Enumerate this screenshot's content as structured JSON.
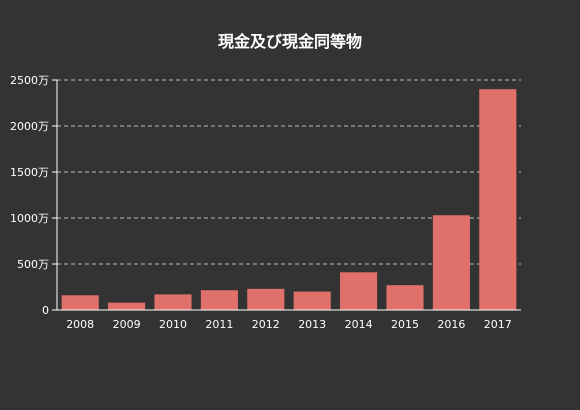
{
  "chart_data": {
    "type": "bar",
    "title": "現金及び現金同等物",
    "categories": [
      "2008",
      "2009",
      "2010",
      "2011",
      "2012",
      "2013",
      "2014",
      "2015",
      "2016",
      "2017"
    ],
    "series": [
      {
        "values": [
          160,
          80,
          170,
          215,
          230,
          200,
          410,
          270,
          1030,
          2400
        ],
        "color": "#e0706a"
      }
    ],
    "y_ticks": [
      0,
      500,
      1000,
      1500,
      2000,
      2500
    ],
    "y_tick_labels": [
      "0",
      "500万",
      "1000万",
      "1500万",
      "2000万",
      "2500万"
    ],
    "ylim": [
      0,
      2500
    ],
    "grid": true,
    "grid_style": "dashed",
    "xlabel": "",
    "ylabel": ""
  },
  "colors": {
    "background": "#333333",
    "bar": "#e0706a",
    "text": "#ffffff",
    "axis": "#ffffff",
    "grid": "#bbbbbb"
  }
}
